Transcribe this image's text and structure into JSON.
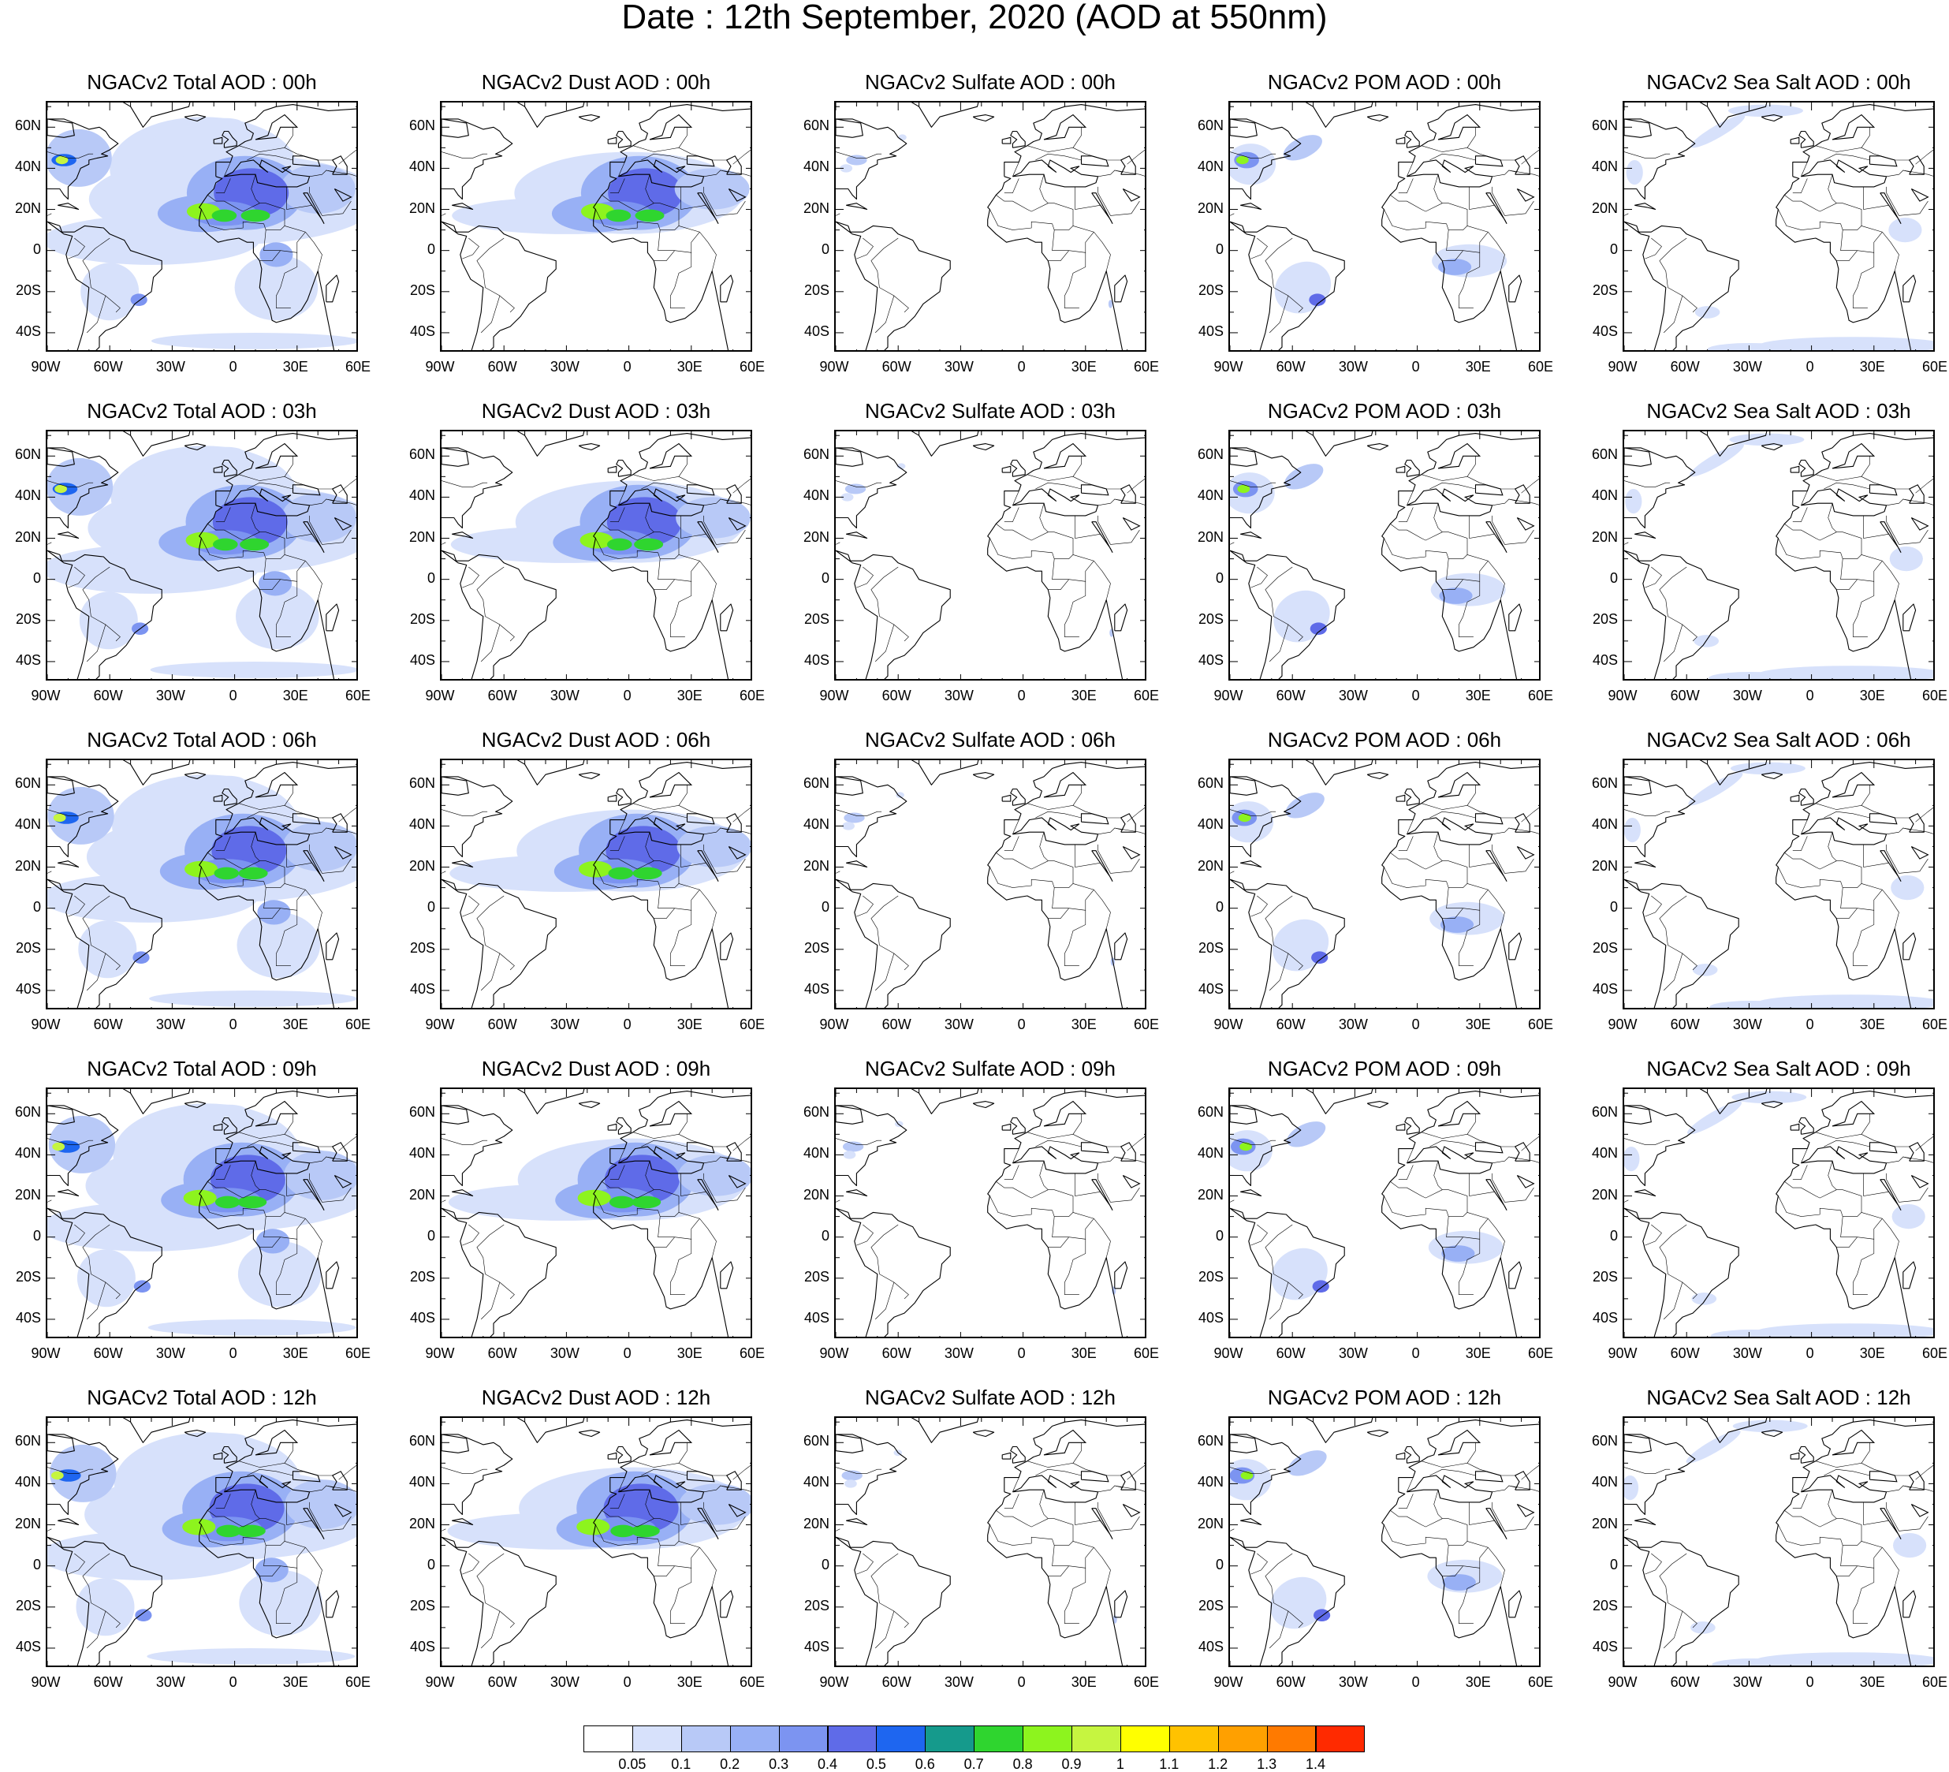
{
  "title": "Date : 12th September, 2020 (AOD at 550nm)",
  "colors": {
    "land_outline": "#000000",
    "frame": "#000000"
  },
  "axes": {
    "lat_labels": [
      "60N",
      "40N",
      "20N",
      "0",
      "20S",
      "40S"
    ],
    "lat_values": [
      60,
      40,
      20,
      0,
      -20,
      -40
    ],
    "lon_labels": [
      "90W",
      "60W",
      "30W",
      "0",
      "30E",
      "60E"
    ],
    "lon_values": [
      -90,
      -60,
      -30,
      0,
      30,
      60
    ],
    "lon_range": [
      -90,
      60
    ],
    "lat_range": [
      -50,
      72
    ]
  },
  "columns": [
    "total",
    "dust",
    "sulfate",
    "pom",
    "seasalt"
  ],
  "panels": [
    [
      "NGACv2 Total AOD : 00h",
      "NGACv2 Dust AOD : 00h",
      "NGACv2 Sulfate AOD : 00h",
      "NGACv2 POM AOD : 00h",
      "NGACv2 Sea Salt AOD : 00h"
    ],
    [
      "NGACv2 Total AOD : 03h",
      "NGACv2 Dust AOD : 03h",
      "NGACv2 Sulfate AOD : 03h",
      "NGACv2 POM AOD : 03h",
      "NGACv2 Sea Salt AOD : 03h"
    ],
    [
      "NGACv2 Total AOD : 06h",
      "NGACv2 Dust AOD : 06h",
      "NGACv2 Sulfate AOD : 06h",
      "NGACv2 POM AOD : 06h",
      "NGACv2 Sea Salt AOD : 06h"
    ],
    [
      "NGACv2 Total AOD : 09h",
      "NGACv2 Dust AOD : 09h",
      "NGACv2 Sulfate AOD : 09h",
      "NGACv2 POM AOD : 09h",
      "NGACv2 Sea Salt  AOD : 09h"
    ],
    [
      "NGACv2 Total AOD  : 12h",
      "NGACv2 Dust AOD : 12h",
      "NGACv2 Sulfate AOD : 12h",
      "NGACv2 POM  AOD : 12h",
      "NGACv2 Sea Salt  AOD : 12h"
    ]
  ],
  "colorbar": {
    "colors": [
      "#ffffff",
      "#d7e1fb",
      "#b8c9f7",
      "#98b0f5",
      "#7c94f1",
      "#5f6be8",
      "#1e66f0",
      "#159a8c",
      "#2fd52f",
      "#8df41e",
      "#c6f540",
      "#ffff00",
      "#ffc200",
      "#ffa000",
      "#ff7a00",
      "#ff2a00"
    ],
    "labels": [
      "0.05",
      "0.1",
      "0.2",
      "0.3",
      "0.4",
      "0.5",
      "0.6",
      "0.7",
      "0.8",
      "0.9",
      "1",
      "1.1",
      "1.2",
      "1.3",
      "1.4"
    ]
  }
}
